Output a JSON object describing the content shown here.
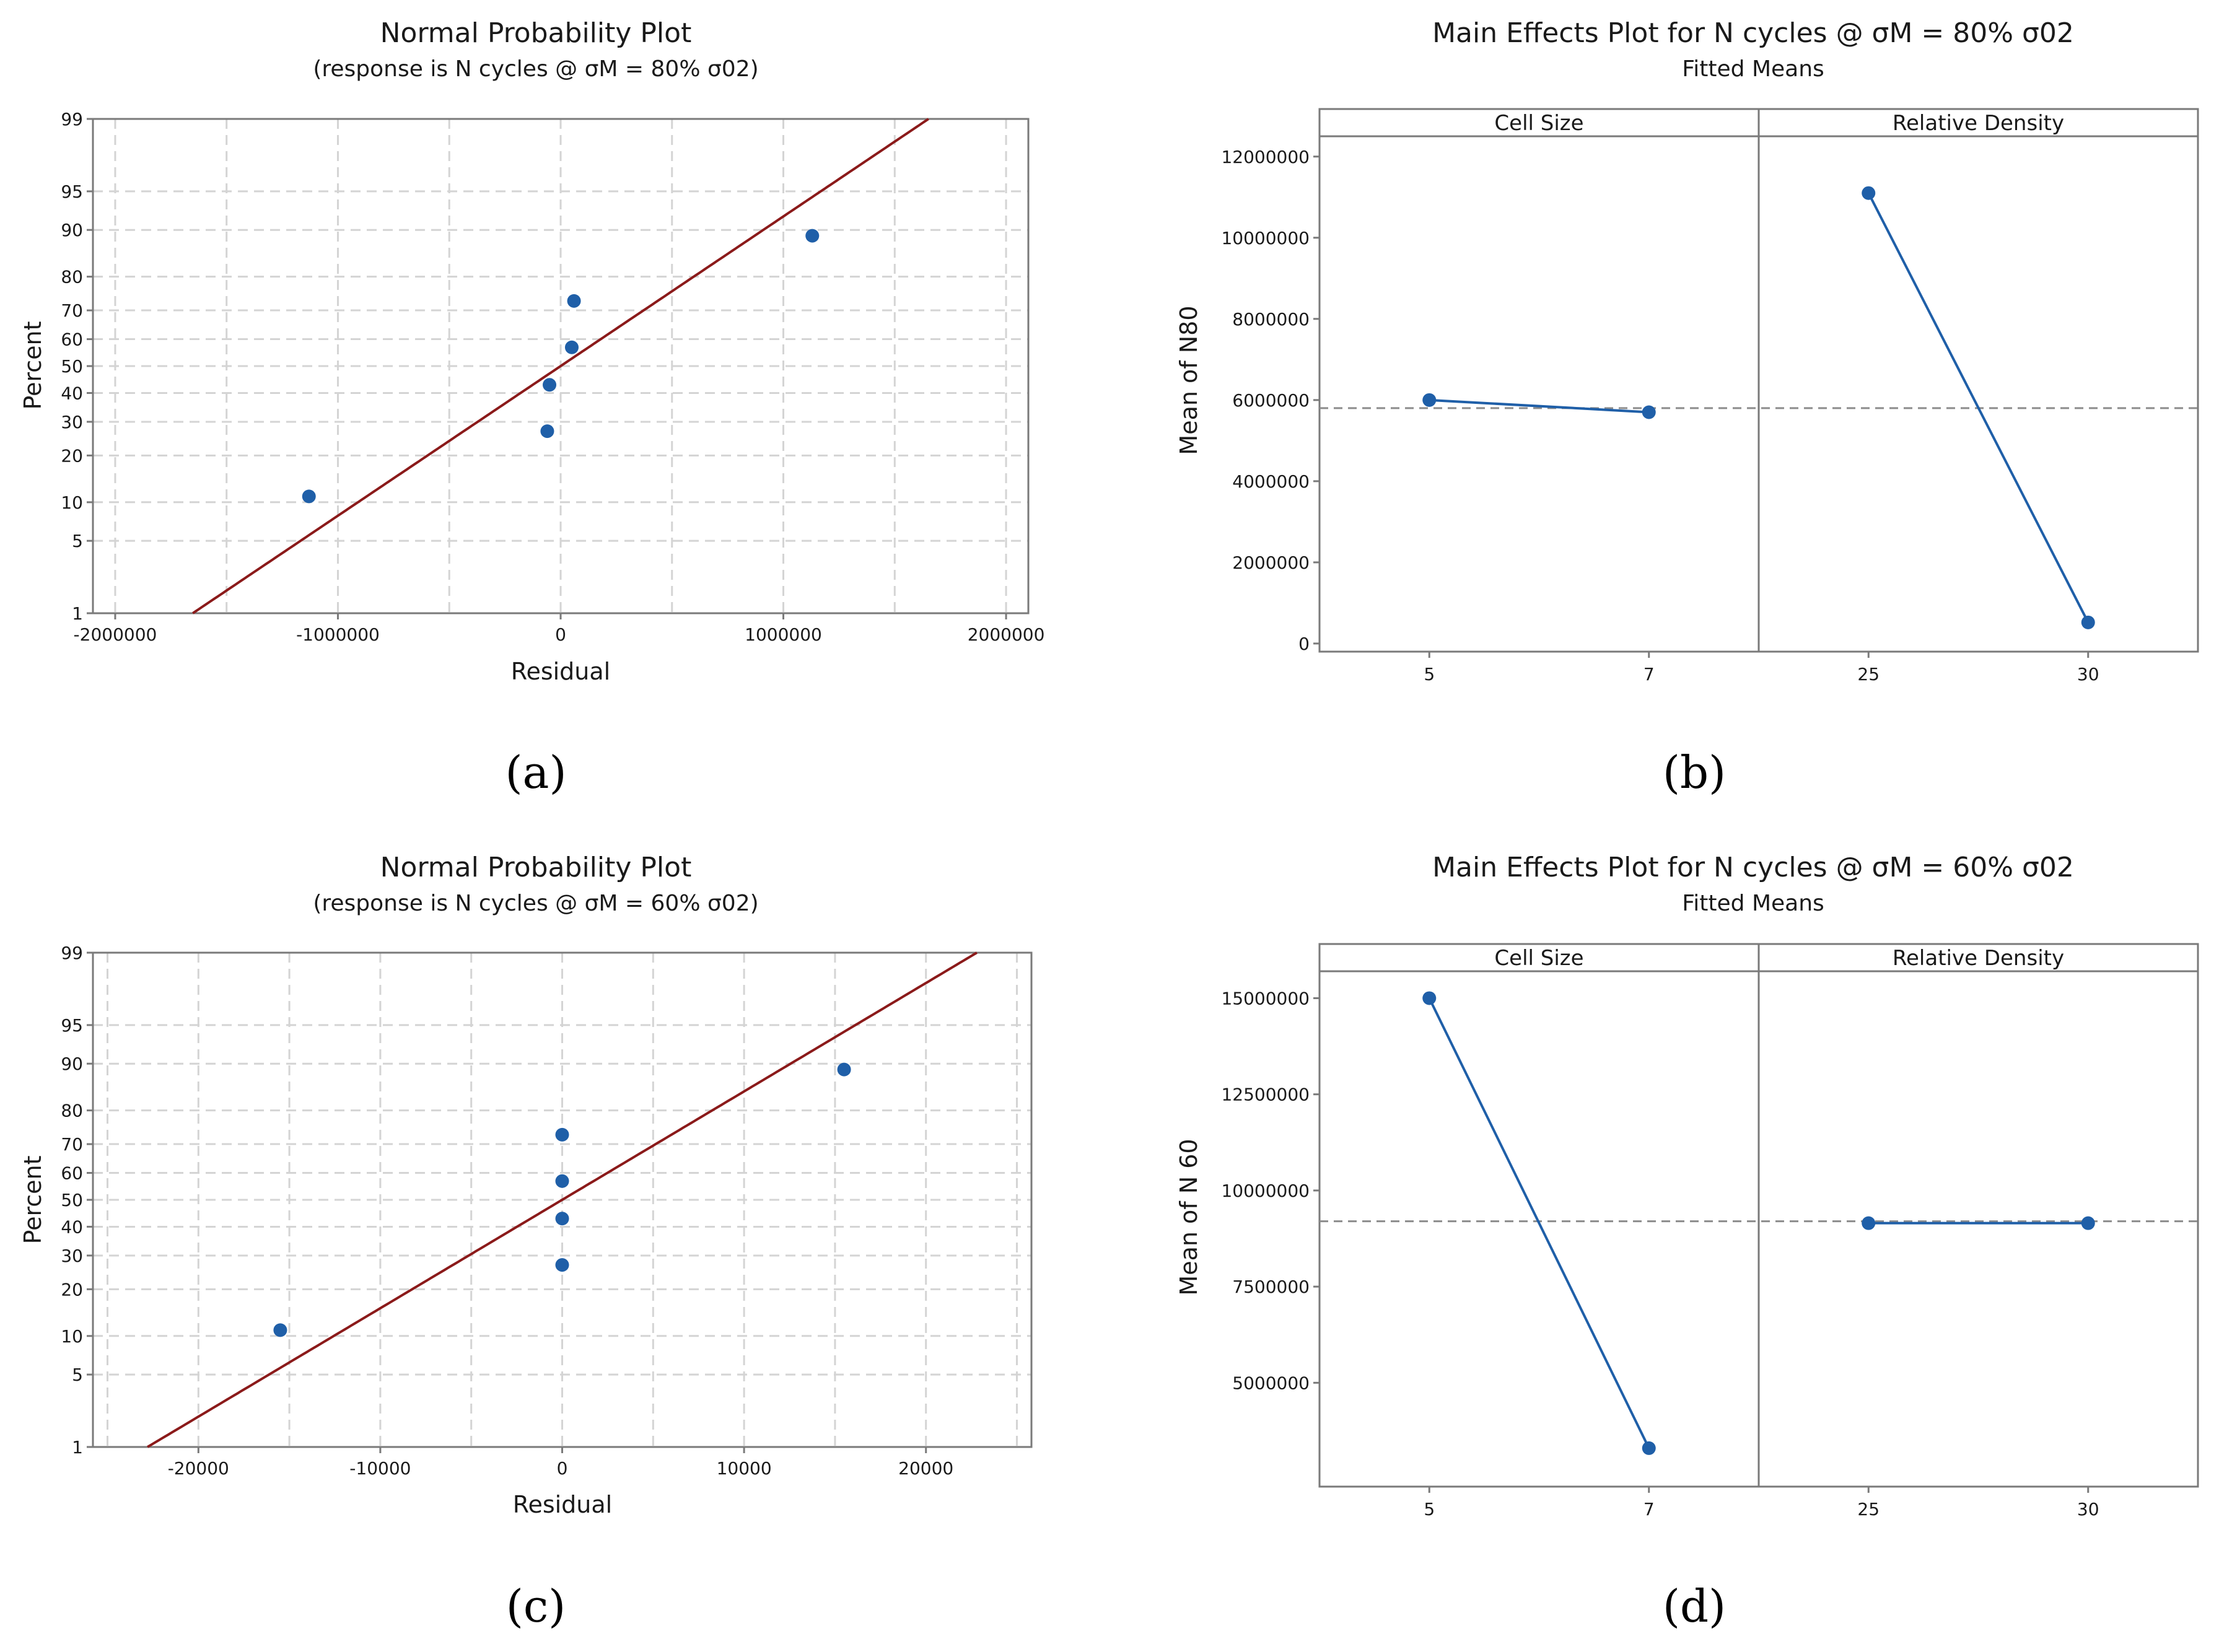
{
  "panel_labels": [
    "(a)",
    "(b)",
    "(c)",
    "(d)"
  ],
  "chart_data": [
    {
      "type": "scatter",
      "title": "Normal Probability Plot",
      "subtitle": "(response is N cycles @ σM = 80% σ02)",
      "xlabel": "Residual",
      "ylabel": "Percent",
      "xlim": [
        -2100000,
        2100000
      ],
      "xticks": [
        -2000000,
        -1000000,
        0,
        1000000,
        2000000
      ],
      "xtick_labels": [
        "-2000000",
        "-1000000",
        "0",
        "1000000",
        "2000000"
      ],
      "xgrid": [
        -2000000,
        -1500000,
        -1000000,
        -500000,
        0,
        500000,
        1000000,
        1500000,
        2000000
      ],
      "yticks": [
        1,
        5,
        10,
        20,
        30,
        40,
        50,
        60,
        70,
        80,
        90,
        95,
        99
      ],
      "points": [
        {
          "x": -1130000,
          "y": 11
        },
        {
          "x": -60000,
          "y": 27
        },
        {
          "x": -50000,
          "y": 43
        },
        {
          "x": 50000,
          "y": 57
        },
        {
          "x": 60000,
          "y": 73
        },
        {
          "x": 1130000,
          "y": 89
        }
      ],
      "fit_line": {
        "mean": 0,
        "sigma": 710000
      }
    },
    {
      "type": "line",
      "title": "Main Effects Plot for  N cycles @ σM = 80% σ02",
      "subtitle": "Fitted Means",
      "ylabel": "Mean of N80",
      "ylim": [
        -200000,
        12500000
      ],
      "yticks": [
        0,
        2000000,
        4000000,
        6000000,
        8000000,
        10000000,
        12000000
      ],
      "ytick_labels": [
        "0",
        "2000000",
        "4000000",
        "6000000",
        "8000000",
        "10000000",
        "12000000"
      ],
      "overall_mean": 5800000,
      "factors": [
        {
          "name": "Cell Size",
          "levels": [
            "5",
            "7"
          ],
          "values": [
            6000000,
            5700000
          ]
        },
        {
          "name": "Relative Density",
          "levels": [
            "25",
            "30"
          ],
          "values": [
            11100000,
            520000
          ]
        }
      ]
    },
    {
      "type": "scatter",
      "title": "Normal Probability Plot",
      "subtitle": "(response is  N cycles @ σM = 60% σ02)",
      "xlabel": "Residual",
      "ylabel": "Percent",
      "xlim": [
        -25800,
        25800
      ],
      "xticks": [
        -20000,
        -10000,
        0,
        10000,
        20000
      ],
      "xtick_labels": [
        "-20000",
        "-10000",
        "0",
        "10000",
        "20000"
      ],
      "xgrid": [
        -25000,
        -20000,
        -15000,
        -10000,
        -5000,
        0,
        5000,
        10000,
        15000,
        20000,
        25000
      ],
      "yticks": [
        1,
        5,
        10,
        20,
        30,
        40,
        50,
        60,
        70,
        80,
        90,
        95,
        99
      ],
      "points": [
        {
          "x": -15500,
          "y": 11
        },
        {
          "x": 0,
          "y": 27
        },
        {
          "x": 0,
          "y": 43
        },
        {
          "x": 0,
          "y": 57
        },
        {
          "x": 0,
          "y": 73
        },
        {
          "x": 15500,
          "y": 89
        }
      ],
      "fit_line": {
        "mean": 0,
        "sigma": 9800
      }
    },
    {
      "type": "line",
      "title": "Main Effects Plot for N cycles @ σM = 60% σ02",
      "subtitle": "Fitted Means",
      "ylabel": "Mean of N 60",
      "ylim": [
        2300000,
        15700000
      ],
      "yticks": [
        5000000,
        7500000,
        10000000,
        12500000,
        15000000
      ],
      "ytick_labels": [
        "5000000",
        "7500000",
        "10000000",
        "12500000",
        "15000000"
      ],
      "overall_mean": 9200000,
      "factors": [
        {
          "name": "Cell Size",
          "levels": [
            "5",
            "7"
          ],
          "values": [
            15000000,
            3300000
          ]
        },
        {
          "name": "Relative Density",
          "levels": [
            "25",
            "30"
          ],
          "values": [
            9150000,
            9150000
          ]
        }
      ]
    }
  ]
}
